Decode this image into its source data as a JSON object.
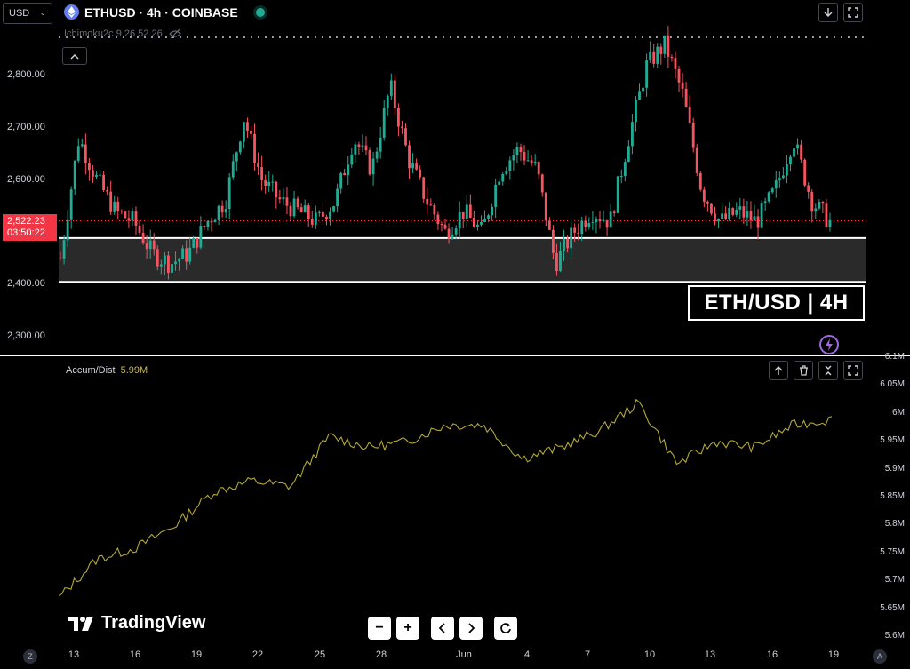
{
  "header": {
    "currency": "USD",
    "symbol": "ETHUSD · 4h · COINBASE",
    "indicator": "Ichimoku2c 9 26 52 26"
  },
  "price_pane": {
    "price_levels": [
      "2,800.00",
      "2,700.00",
      "2,600.00",
      "2,400.00",
      "2,300.00"
    ],
    "current_price": "2,522.23",
    "countdown": "03:50:22",
    "overlay_label": "ETH/USD | 4H",
    "support_zone": [
      2405,
      2489
    ],
    "colors": {
      "up": "#22ab94",
      "down": "#f7525f",
      "zone": "#2a2a2a"
    }
  },
  "indicator_pane": {
    "name": "Accum/Dist",
    "value": "5.99M",
    "line_color": "#b4a838",
    "scale_labels": [
      "6.1M",
      "6.05M",
      "6M",
      "5.95M",
      "5.9M",
      "5.85M",
      "5.8M",
      "5.75M",
      "5.7M",
      "5.65M",
      "5.6M"
    ]
  },
  "branding": {
    "logo_text": "TradingView"
  },
  "x_axis": {
    "dates": [
      "13",
      "16",
      "19",
      "22",
      "25",
      "28",
      "Jun",
      "4",
      "7",
      "10",
      "13",
      "16",
      "19"
    ],
    "left_badge": "Z",
    "right_badge": "A"
  },
  "chart_data": {
    "type": "candlestick",
    "title": "ETHUSD · 4h · COINBASE",
    "y_range": [
      2290,
      2880
    ],
    "approx_close_path": [
      2450,
      2680,
      2600,
      2540,
      2520,
      2460,
      2440,
      2460,
      2520,
      2560,
      2720,
      2600,
      2560,
      2540,
      2520,
      2560,
      2680,
      2620,
      2780,
      2640,
      2560,
      2500,
      2540,
      2500,
      2620,
      2660,
      2620,
      2440,
      2500,
      2540,
      2520,
      2680,
      2820,
      2860,
      2760,
      2580,
      2520,
      2540,
      2520,
      2580,
      2680,
      2560,
      2520
    ],
    "indicator": {
      "name": "Accum/Dist",
      "y_range": [
        5.6,
        6.1
      ],
      "values": [
        5.67,
        5.74,
        5.76,
        5.8,
        5.86,
        5.88,
        5.87,
        5.96,
        5.94,
        5.95,
        5.98,
        5.98,
        5.92,
        5.94,
        5.97,
        6.02,
        5.91,
        5.95,
        5.94,
        5.98,
        5.99
      ]
    }
  }
}
